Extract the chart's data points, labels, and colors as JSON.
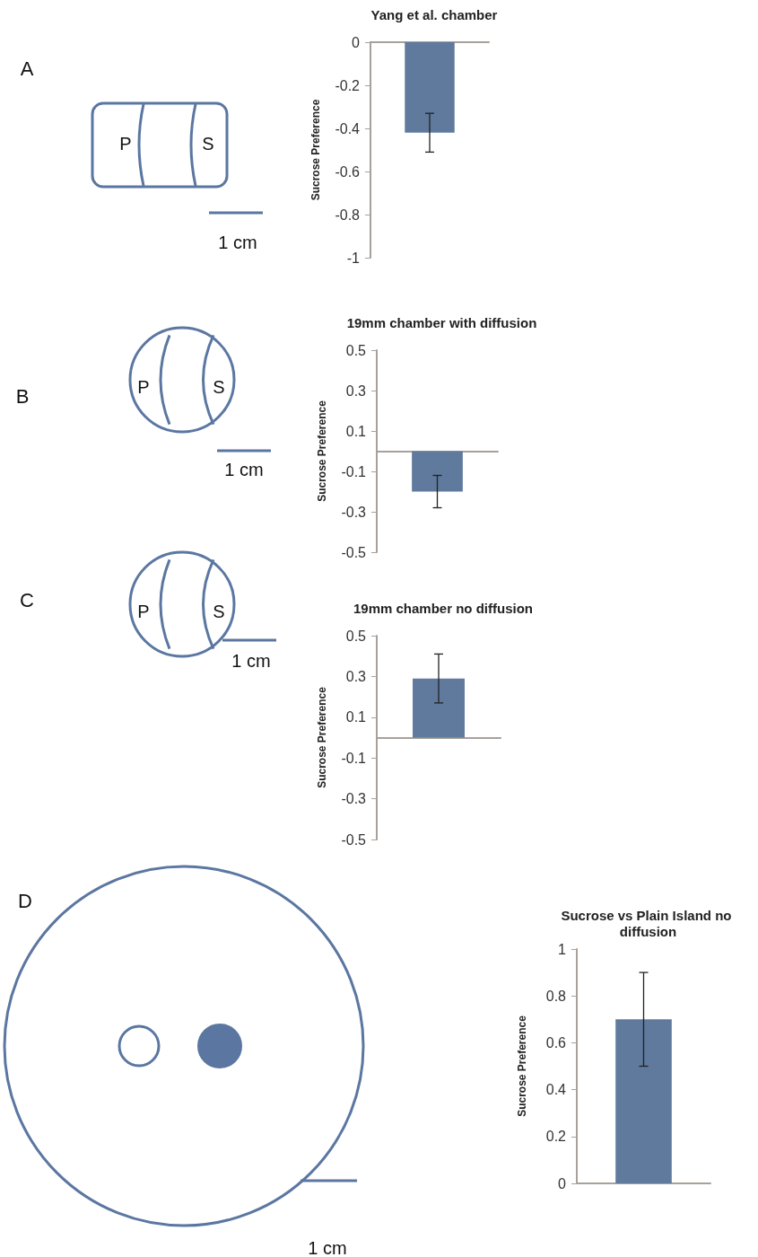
{
  "chart_data": [
    {
      "type": "bar",
      "title": "Yang et al. chamber",
      "ylabel": "Sucrose Preference",
      "categories": [
        null
      ],
      "values": [
        -0.42
      ],
      "errors": [
        0.09
      ],
      "color": "#5f7a9c",
      "ylim": [
        -1,
        0
      ],
      "yticks": [
        -1,
        -0.8,
        -0.6,
        -0.4,
        -0.2,
        0
      ],
      "grid": false,
      "annotations": [
        "A",
        "P",
        "S",
        "1 cm"
      ]
    },
    {
      "type": "bar",
      "title": "19mm chamber with diffusion",
      "ylabel": "Sucrose Preference",
      "categories": [
        null
      ],
      "values": [
        -0.2
      ],
      "errors": [
        0.08
      ],
      "color": "#5f7a9c",
      "ylim": [
        -0.5,
        0.5
      ],
      "yticks": [
        -0.5,
        -0.3,
        -0.1,
        0.1,
        0.3,
        0.5
      ],
      "grid": false,
      "annotations": [
        "B",
        "P",
        "S",
        "1 cm"
      ]
    },
    {
      "type": "bar",
      "title": "19mm chamber no diffusion",
      "ylabel": "Sucrose Preference",
      "categories": [
        null
      ],
      "values": [
        0.29
      ],
      "errors": [
        0.12
      ],
      "color": "#5f7a9c",
      "ylim": [
        -0.5,
        0.5
      ],
      "yticks": [
        -0.5,
        -0.3,
        -0.1,
        0.1,
        0.3,
        0.5
      ],
      "grid": false,
      "annotations": [
        "C",
        "P",
        "S",
        "1 cm"
      ]
    },
    {
      "type": "bar",
      "title": "Sucrose vs Plain Island no diffusion",
      "ylabel": "Sucrose Preference",
      "categories": [
        null
      ],
      "values": [
        0.7
      ],
      "errors": [
        0.2
      ],
      "color": "#5f7a9c",
      "ylim": [
        0,
        1
      ],
      "yticks": [
        0,
        0.2,
        0.4,
        0.6,
        0.8,
        1
      ],
      "grid": false,
      "annotations": [
        "D",
        "1 cm"
      ]
    }
  ]
}
